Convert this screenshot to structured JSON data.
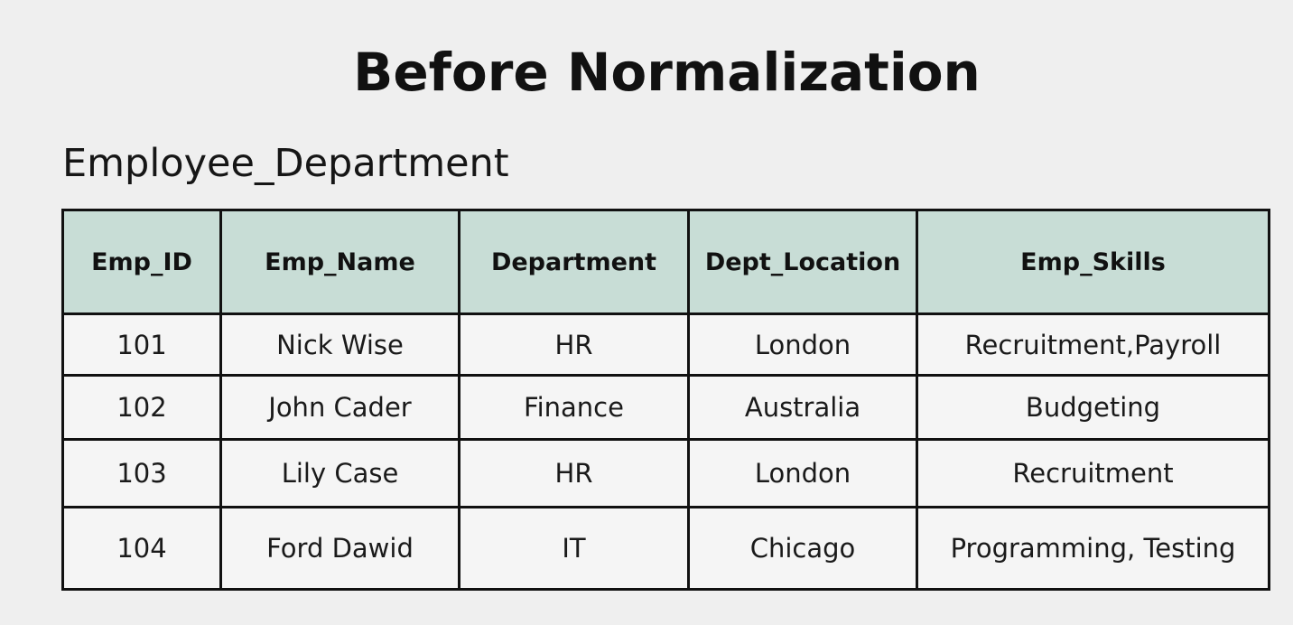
{
  "page": {
    "title": "Before Normalization"
  },
  "table": {
    "name": "Employee_Department",
    "columns": [
      "Emp_ID",
      "Emp_Name",
      "Department",
      "Dept_Location",
      "Emp_Skills"
    ],
    "rows": [
      [
        "101",
        "Nick Wise",
        "HR",
        "London",
        "Recruitment,Payroll"
      ],
      [
        "102",
        "John Cader",
        "Finance",
        "Australia",
        "Budgeting"
      ],
      [
        "103",
        "Lily Case",
        "HR",
        "London",
        "Recruitment"
      ],
      [
        "104",
        "Ford Dawid",
        "IT",
        "Chicago",
        "Programming, Testing"
      ]
    ],
    "header_color": "#c8ddd6"
  }
}
